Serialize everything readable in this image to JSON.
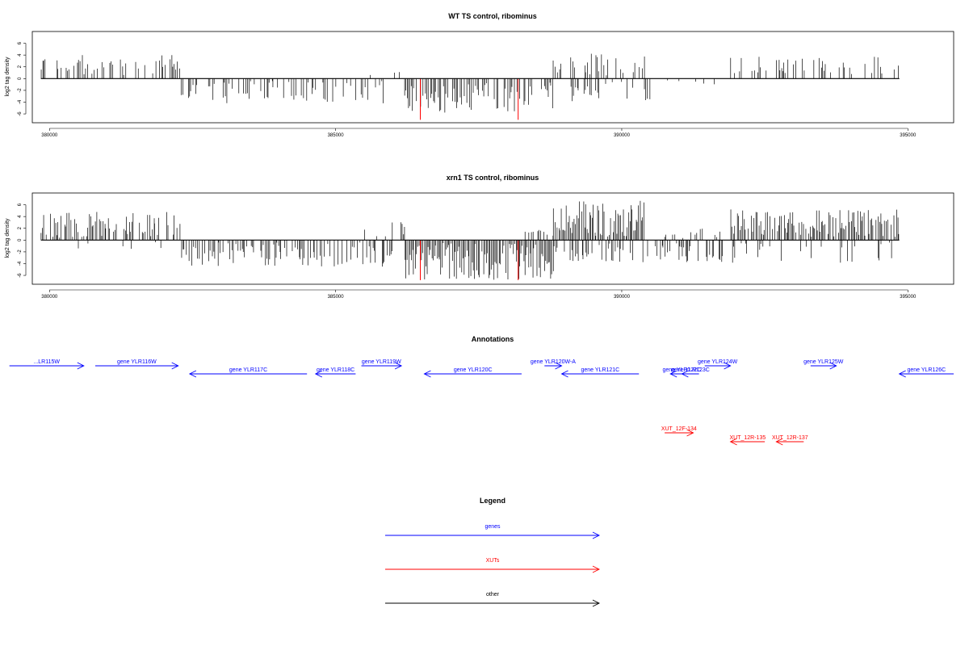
{
  "colors": {
    "gene": "#0000ff",
    "xut": "#ff0000",
    "other": "#000000",
    "highlight": "#ff0000"
  },
  "chart_data": [
    {
      "type": "bar",
      "title": "WT TS control, ribominus",
      "ylabel": "log2 tag density",
      "xlabel": "",
      "xlim": [
        379700,
        395800
      ],
      "ylim": [
        -7.5,
        8
      ],
      "x_ticks": [
        380000,
        385000,
        390000,
        395000
      ],
      "x_tick_labels": [
        "380000",
        "385000",
        "390000",
        "395000"
      ],
      "y_ticks": [
        -6,
        -4,
        -2,
        0,
        2,
        4,
        6
      ],
      "y_tick_labels": [
        "-6",
        "-4",
        "-2",
        "0",
        "2",
        "4",
        "6"
      ],
      "baseline": [
        379850,
        394850
      ],
      "highlight_bars": [
        {
          "x": 386480,
          "y": -7.0
        },
        {
          "x": 388190,
          "y": -7.0
        }
      ],
      "density_segments": [
        {
          "start": 379850,
          "end": 382300,
          "min": 0.6,
          "max": 4.0,
          "dense": 0.35,
          "seed": 11
        },
        {
          "start": 382300,
          "end": 385900,
          "min": -4.2,
          "max": -0.4,
          "dense": 0.35,
          "seed": 12
        },
        {
          "start": 385500,
          "end": 386200,
          "min": 0.3,
          "max": 1.2,
          "dense": 0.08,
          "seed": 13
        },
        {
          "start": 386200,
          "end": 388800,
          "min": -5.8,
          "max": -0.5,
          "dense": 0.6,
          "seed": 14
        },
        {
          "start": 388800,
          "end": 390500,
          "min": 0.5,
          "max": 4.5,
          "dense": 0.45,
          "seed": 15
        },
        {
          "start": 389100,
          "end": 390500,
          "min": -4.0,
          "max": -0.4,
          "dense": 0.35,
          "seed": 16
        },
        {
          "start": 390500,
          "end": 391900,
          "min": -1.2,
          "max": -0.2,
          "dense": 0.08,
          "seed": 17
        },
        {
          "start": 391900,
          "end": 394850,
          "min": 0.6,
          "max": 3.8,
          "dense": 0.3,
          "seed": 18
        }
      ]
    },
    {
      "type": "bar",
      "title": "xrn1 TS control, ribominus",
      "ylabel": "log2 tag density",
      "xlabel": "",
      "xlim": [
        379700,
        395800
      ],
      "ylim": [
        -7.5,
        8
      ],
      "x_ticks": [
        380000,
        385000,
        390000,
        395000
      ],
      "x_tick_labels": [
        "380000",
        "385000",
        "390000",
        "395000"
      ],
      "y_ticks": [
        -6,
        -4,
        -2,
        0,
        2,
        4,
        6
      ],
      "y_tick_labels": [
        "-6",
        "-4",
        "-2",
        "0",
        "2",
        "4",
        "6"
      ],
      "baseline": [
        379850,
        394850
      ],
      "highlight_bars": [
        {
          "x": 386480,
          "y": -6.8
        },
        {
          "x": 388190,
          "y": -6.8
        }
      ],
      "density_segments": [
        {
          "start": 379850,
          "end": 382300,
          "min": 0.4,
          "max": 4.8,
          "dense": 0.55,
          "seed": 21
        },
        {
          "start": 380400,
          "end": 382300,
          "min": -1.5,
          "max": -0.3,
          "dense": 0.08,
          "seed": 22
        },
        {
          "start": 382300,
          "end": 386000,
          "min": -4.5,
          "max": -0.4,
          "dense": 0.55,
          "seed": 23
        },
        {
          "start": 385500,
          "end": 386200,
          "min": 0.5,
          "max": 3.3,
          "dense": 0.3,
          "seed": 24
        },
        {
          "start": 386200,
          "end": 388800,
          "min": -6.8,
          "max": -0.5,
          "dense": 0.95,
          "seed": 25
        },
        {
          "start": 388300,
          "end": 388800,
          "min": 0.4,
          "max": 2.0,
          "dense": 0.3,
          "seed": 26
        },
        {
          "start": 388800,
          "end": 390400,
          "min": 0.5,
          "max": 7.2,
          "dense": 0.9,
          "seed": 27
        },
        {
          "start": 388800,
          "end": 391800,
          "min": -4.0,
          "max": -0.4,
          "dense": 0.45,
          "seed": 28
        },
        {
          "start": 390400,
          "end": 391800,
          "min": 0.3,
          "max": 2.0,
          "dense": 0.2,
          "seed": 29
        },
        {
          "start": 391900,
          "end": 394850,
          "min": 0.5,
          "max": 5.2,
          "dense": 0.85,
          "seed": 30
        },
        {
          "start": 391900,
          "end": 394850,
          "min": -4.0,
          "max": -0.4,
          "dense": 0.2,
          "seed": 31
        }
      ]
    },
    {
      "type": "annotation-track",
      "title": "Annotations",
      "xlim": [
        379700,
        395800
      ],
      "features": [
        {
          "label": "...LR115W",
          "kind": "gene",
          "start": 379300,
          "end": 380600,
          "strand": "+",
          "row": 0
        },
        {
          "label": "gene YLR116W",
          "kind": "gene",
          "start": 380800,
          "end": 382250,
          "strand": "+",
          "row": 0
        },
        {
          "label": "gene YLR117C",
          "kind": "gene",
          "start": 382450,
          "end": 384500,
          "strand": "-",
          "row": 1
        },
        {
          "label": "gene YLR118C",
          "kind": "gene",
          "start": 384650,
          "end": 385350,
          "strand": "-",
          "row": 1
        },
        {
          "label": "gene YLR119W",
          "kind": "gene",
          "start": 385450,
          "end": 386150,
          "strand": "+",
          "row": 0
        },
        {
          "label": "gene YLR120C",
          "kind": "gene",
          "start": 386550,
          "end": 388250,
          "strand": "-",
          "row": 1
        },
        {
          "label": "gene YLR120W-A",
          "kind": "gene",
          "start": 388650,
          "end": 388950,
          "strand": "+",
          "row": 0
        },
        {
          "label": "gene YLR121C",
          "kind": "gene",
          "start": 388950,
          "end": 390300,
          "strand": "-",
          "row": 1
        },
        {
          "label": "gene YLR122C",
          "kind": "gene",
          "start": 390850,
          "end": 391250,
          "strand": "-",
          "row": 1
        },
        {
          "label": "gene YLR123C",
          "kind": "gene",
          "start": 391050,
          "end": 391350,
          "strand": "-",
          "row": 1
        },
        {
          "label": "gene YLR124W",
          "kind": "gene",
          "start": 391450,
          "end": 391900,
          "strand": "+",
          "row": 0
        },
        {
          "label": "gene YLR125W",
          "kind": "gene",
          "start": 393300,
          "end": 393750,
          "strand": "+",
          "row": 0
        },
        {
          "label": "gene YLR126C",
          "kind": "gene",
          "start": 394850,
          "end": 395800,
          "strand": "-",
          "row": 1
        },
        {
          "label": "XUT_12F-134",
          "kind": "xut",
          "start": 390750,
          "end": 391250,
          "strand": "+",
          "row": 2
        },
        {
          "label": "XUT_12R-135",
          "kind": "xut",
          "start": 391900,
          "end": 392500,
          "strand": "-",
          "row": 3
        },
        {
          "label": "XUT_12R-137",
          "kind": "xut",
          "start": 392700,
          "end": 393180,
          "strand": "-",
          "row": 3
        }
      ]
    },
    {
      "type": "legend",
      "title": "Legend",
      "entries": [
        {
          "label": "genes",
          "kind": "gene"
        },
        {
          "label": "XUTs",
          "kind": "xut"
        },
        {
          "label": "other",
          "kind": "other"
        }
      ]
    }
  ]
}
